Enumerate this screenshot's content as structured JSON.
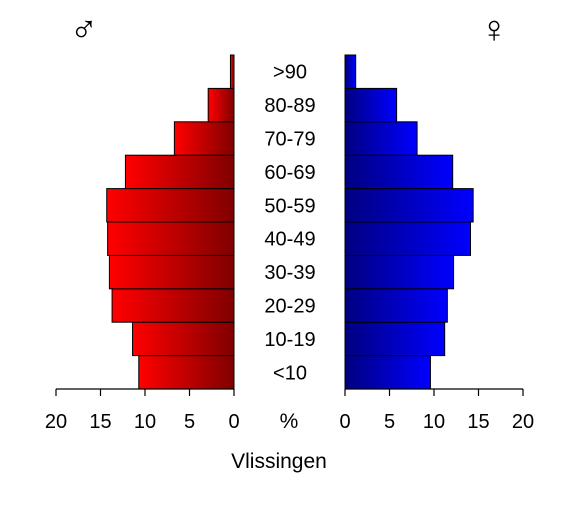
{
  "chart_data": {
    "type": "bar",
    "title": "Vlissingen",
    "left_symbol": "♂",
    "right_symbol": "♀",
    "center_unit": "%",
    "categories": [
      "<10",
      "10-19",
      "20-29",
      "30-39",
      "40-49",
      "50-59",
      "60-69",
      "70-79",
      "80-89",
      ">90"
    ],
    "series": [
      {
        "name": "♂",
        "side": "left",
        "color_light": "#ff0000",
        "color_dark": "#800000",
        "values": [
          10.7,
          11.4,
          13.7,
          14.0,
          14.2,
          14.3,
          12.2,
          6.7,
          2.9,
          0.4
        ]
      },
      {
        "name": "♀",
        "side": "right",
        "color_light": "#0000ff",
        "color_dark": "#000080",
        "values": [
          9.6,
          11.2,
          11.5,
          12.2,
          14.1,
          14.4,
          12.1,
          8.1,
          5.8,
          1.2
        ]
      }
    ],
    "xlim": [
      0,
      20
    ],
    "ticks": [
      "20",
      "15",
      "10",
      "5",
      "0",
      "0",
      "5",
      "10",
      "15",
      "20"
    ]
  }
}
